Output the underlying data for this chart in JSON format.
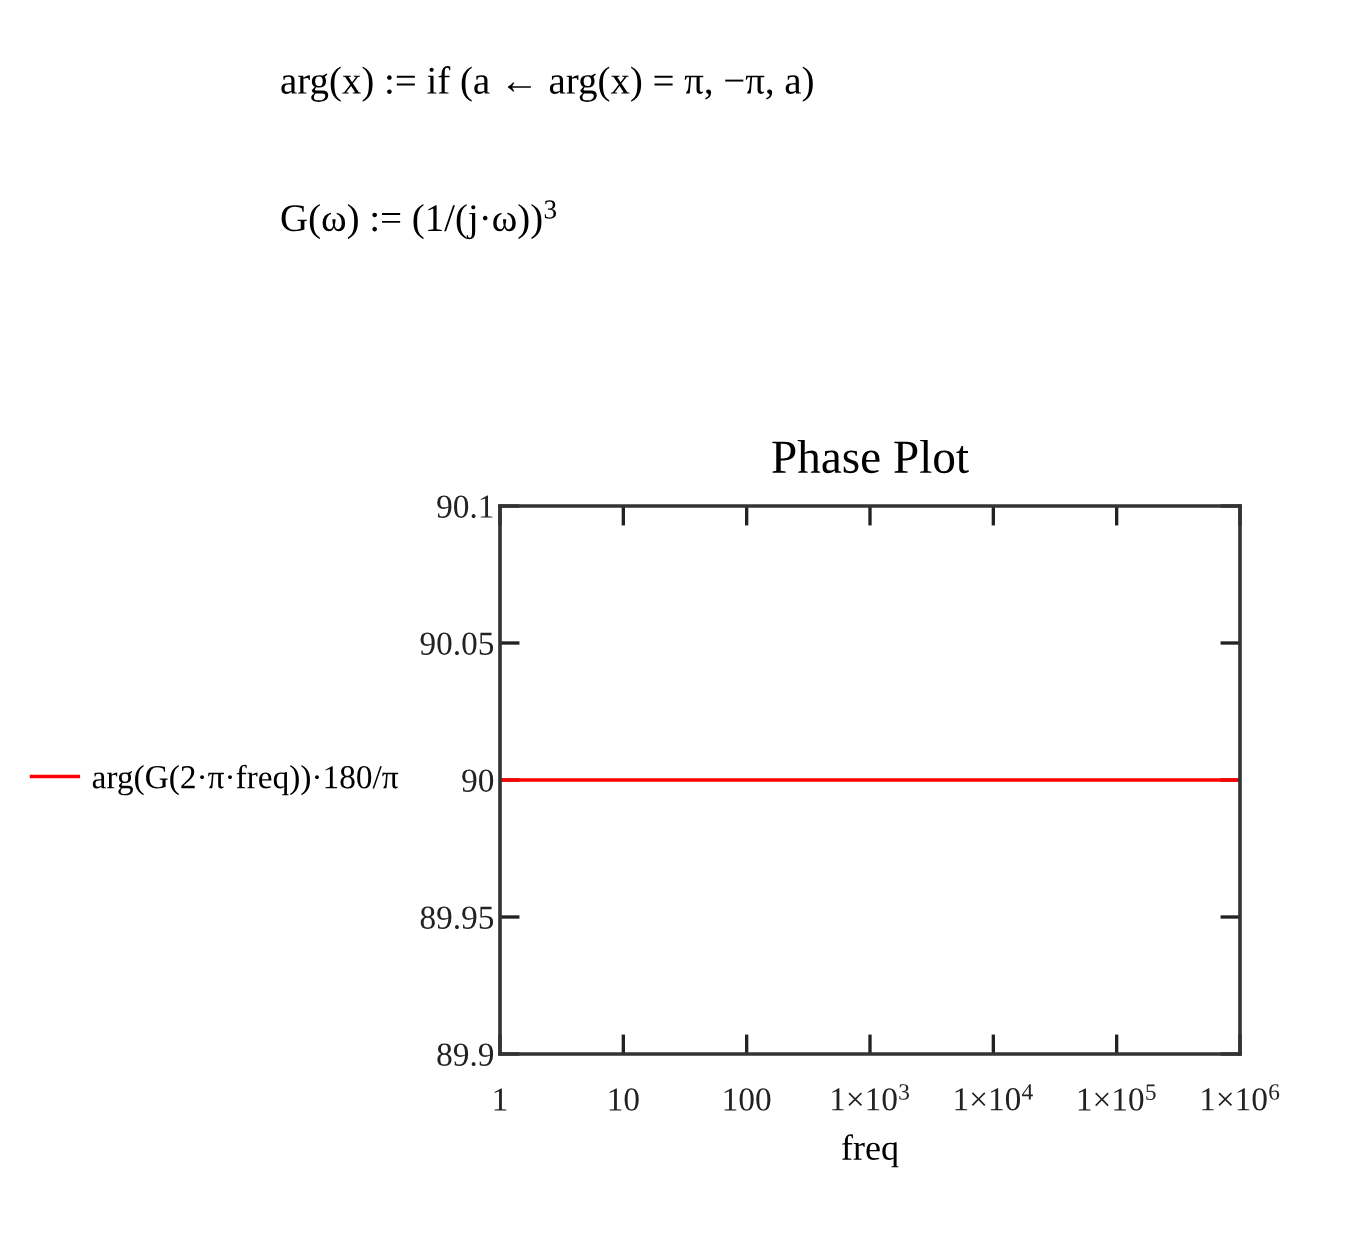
{
  "chart_data": {
    "type": "line",
    "title": "Phase Plot",
    "xlabel": "freq",
    "x": [
      1,
      1000000
    ],
    "series": [
      {
        "name": "arg(G(2·π·freq))·180/π",
        "color": "#ff0000",
        "values": [
          90,
          90
        ]
      }
    ],
    "log": "x",
    "xlim": [
      1,
      1000000
    ],
    "xticks": [
      1,
      10,
      100,
      {
        "value": 1000,
        "label": "1×10$^{3}$"
      },
      {
        "value": 10000,
        "label": "1×10$^{4}$"
      },
      {
        "value": 100000,
        "label": "1×10$^{5}$"
      },
      {
        "value": 1000000,
        "label": "1×10$^{6}$"
      }
    ],
    "ylim": [
      89.9,
      90.1
    ],
    "yticks": [
      89.9,
      89.95,
      90,
      90.05,
      90.1
    ],
    "legend": "left",
    "marker": "none",
    "line_style": "solid",
    "annotations": [
      "arg(x) := if (a ← arg(x) = π, −π, a)",
      "G(ω) := (1/(j·ω))$^{3}$"
    ]
  }
}
